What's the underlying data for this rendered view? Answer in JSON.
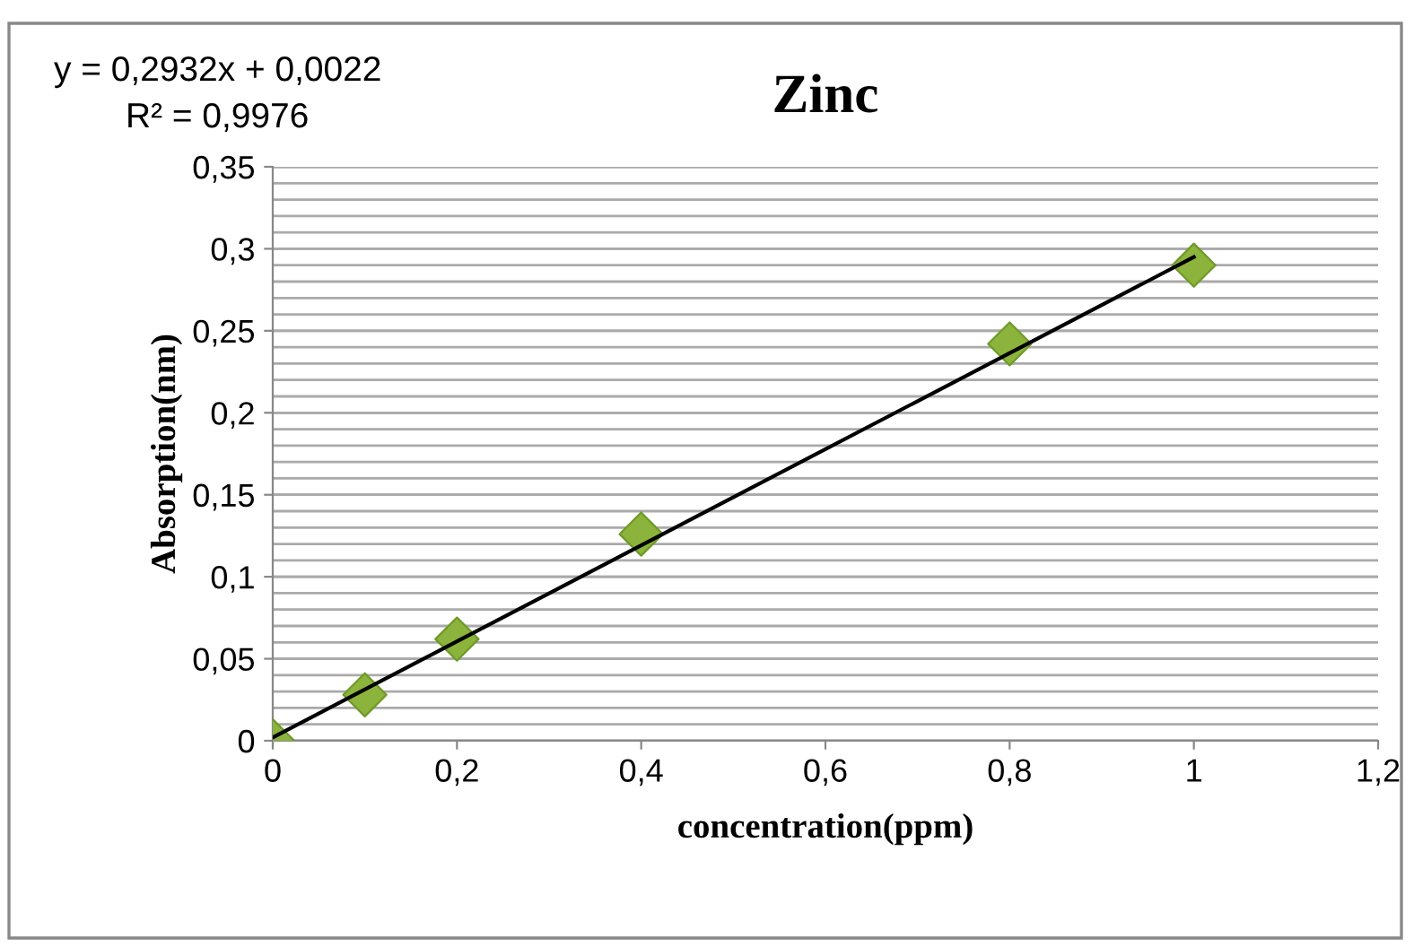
{
  "chart_data": {
    "type": "scatter",
    "title": "Zinc",
    "xlabel": "concentration(ppm)",
    "ylabel": "Absorption(nm)",
    "annotations": [
      "y = 0,2932x + 0,0022",
      "R² = 0,9976"
    ],
    "x": [
      0,
      0.1,
      0.2,
      0.4,
      0.8,
      1
    ],
    "series": [
      {
        "color": "#8cb43c",
        "marker": "diamond",
        "values": [
          0,
          0.028,
          0.062,
          0.126,
          0.242,
          0.29
        ]
      },
      {
        "type": "line",
        "color": "#000000",
        "marker": "none",
        "line_style": "solid",
        "x": [
          0,
          1
        ],
        "values": [
          0.002,
          0.295
        ]
      }
    ],
    "xlim": [
      0,
      1.2
    ],
    "ylim": [
      0,
      0.35
    ],
    "xticks": [
      0,
      {
        "value": 0.2,
        "label": "0,2"
      },
      {
        "value": 0.4,
        "label": "0,4"
      },
      {
        "value": 0.6,
        "label": "0,6"
      },
      {
        "value": 0.8,
        "label": "0,8"
      },
      1,
      {
        "value": 1.2,
        "label": "1,2"
      }
    ],
    "yticks": [
      0,
      {
        "value": 0.05,
        "label": "0,05"
      },
      {
        "value": 0.1,
        "label": "0,1"
      },
      {
        "value": 0.15,
        "label": "0,15"
      },
      {
        "value": 0.2,
        "label": "0,2"
      },
      {
        "value": 0.25,
        "label": "0,25"
      },
      {
        "value": 0.3,
        "label": "0,3"
      },
      {
        "value": 0.35,
        "label": "0,35"
      }
    ],
    "grid": "y",
    "legend": false
  }
}
